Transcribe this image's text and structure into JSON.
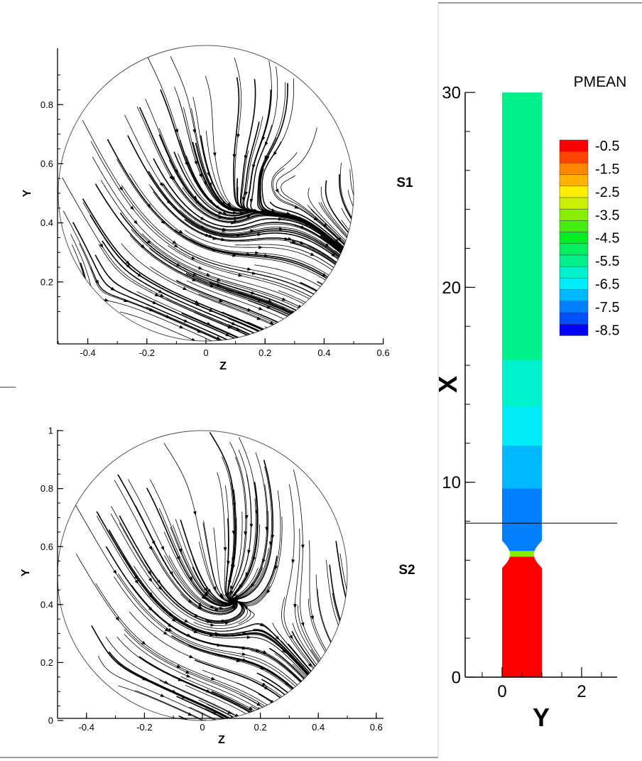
{
  "panels": {
    "s1": {
      "label": "S1",
      "xlabel": "Z",
      "ylabel": "Y",
      "x_ticks": [
        "-0.4",
        "-0.2",
        "0",
        "0.2",
        "0.4",
        "0.6"
      ],
      "y_ticks": [
        "0.2",
        "0.4",
        "0.6",
        "0.8"
      ]
    },
    "s2": {
      "label": "S2",
      "xlabel": "Z",
      "ylabel": "Y",
      "x_ticks": [
        "-0.4",
        "-0.2",
        "0",
        "0.2",
        "0.4",
        "0.6"
      ],
      "y_ticks": [
        "0",
        "0.2",
        "0.4",
        "0.6",
        "0.8",
        "1"
      ]
    }
  },
  "contour": {
    "xlabel": "Y",
    "ylabel": "X",
    "x_ticks": [
      "0",
      "2"
    ],
    "y_ticks": [
      "0",
      "10",
      "20",
      "30"
    ],
    "legend_title": "PMEAN",
    "legend_labels": [
      "-0.5",
      "-1.5",
      "-2.5",
      "-3.5",
      "-4.5",
      "-5.5",
      "-6.5",
      "-7.5",
      "-8.5"
    ]
  },
  "chart_data": [
    {
      "type": "streamline",
      "panel": "S1",
      "xlabel": "Z",
      "ylabel": "Y",
      "xlim": [
        -0.5,
        0.6
      ],
      "ylim": [
        0.03,
        0.98
      ],
      "domain_circle": {
        "center_z": 0.0,
        "center_y": 0.5,
        "radius": 0.5
      },
      "critical_points": [
        {
          "kind": "node",
          "z": 0.09,
          "y": 0.47
        },
        {
          "kind": "focus",
          "z": 0.22,
          "y": 0.56
        },
        {
          "kind": "saddle",
          "z": -0.36,
          "y": 0.17
        }
      ]
    },
    {
      "type": "streamline",
      "panel": "S2",
      "xlabel": "Z",
      "ylabel": "Y",
      "xlim": [
        -0.5,
        0.6
      ],
      "ylim": [
        0,
        1
      ],
      "domain_circle": {
        "center_z": 0.0,
        "center_y": 0.5,
        "radius": 0.5
      },
      "critical_points": [
        {
          "kind": "node",
          "z": 0.08,
          "y": 0.43
        },
        {
          "kind": "saddle",
          "z": -0.36,
          "y": 0.15
        }
      ]
    },
    {
      "type": "contour",
      "variable": "PMEAN",
      "xlabel": "Y",
      "ylabel": "X",
      "xlim": [
        -1,
        2.9
      ],
      "ylim": [
        0,
        30
      ],
      "pipe": {
        "y_from": 0,
        "y_to": 1,
        "x_from": 0,
        "x_to": 30,
        "throat_x": 6.3,
        "throat_width": 0.6
      },
      "levels": [
        {
          "label": "-0.5",
          "color": "#ff0000"
        },
        {
          "label": "-1.0",
          "color": "#ff4400"
        },
        {
          "label": "-1.5",
          "color": "#ff8800"
        },
        {
          "label": "-2.0",
          "color": "#ffb300"
        },
        {
          "label": "-2.5",
          "color": "#ffee00"
        },
        {
          "label": "-3.0",
          "color": "#ccee00"
        },
        {
          "label": "-3.5",
          "color": "#88ee00"
        },
        {
          "label": "-4.0",
          "color": "#44ee11"
        },
        {
          "label": "-4.5",
          "color": "#00ee22"
        },
        {
          "label": "-5.0",
          "color": "#00f060"
        },
        {
          "label": "-5.5",
          "color": "#00f08c"
        },
        {
          "label": "-6.0",
          "color": "#00f2cc"
        },
        {
          "label": "-6.5",
          "color": "#00ecf8"
        },
        {
          "label": "-7.0",
          "color": "#00b8ff"
        },
        {
          "label": "-7.5",
          "color": "#0080ff"
        },
        {
          "label": "-8.0",
          "color": "#0050ff"
        },
        {
          "label": "-8.5",
          "color": "#0000ff"
        }
      ],
      "bands": [
        {
          "x_from": 0,
          "x_to": 6.2,
          "color": "#ff0000"
        },
        {
          "x_from": 6.2,
          "x_to": 6.5,
          "color": "#88ee00"
        },
        {
          "x_from": 6.5,
          "x_to": 9.7,
          "color": "#0080ff"
        },
        {
          "x_from": 9.7,
          "x_to": 11.9,
          "color": "#00b8ff"
        },
        {
          "x_from": 11.9,
          "x_to": 13.9,
          "color": "#00ecf8"
        },
        {
          "x_from": 13.9,
          "x_to": 16.3,
          "color": "#00f2cc"
        },
        {
          "x_from": 16.3,
          "x_to": 30,
          "color": "#00f08c"
        }
      ],
      "cut_line_x": 7.9
    }
  ]
}
